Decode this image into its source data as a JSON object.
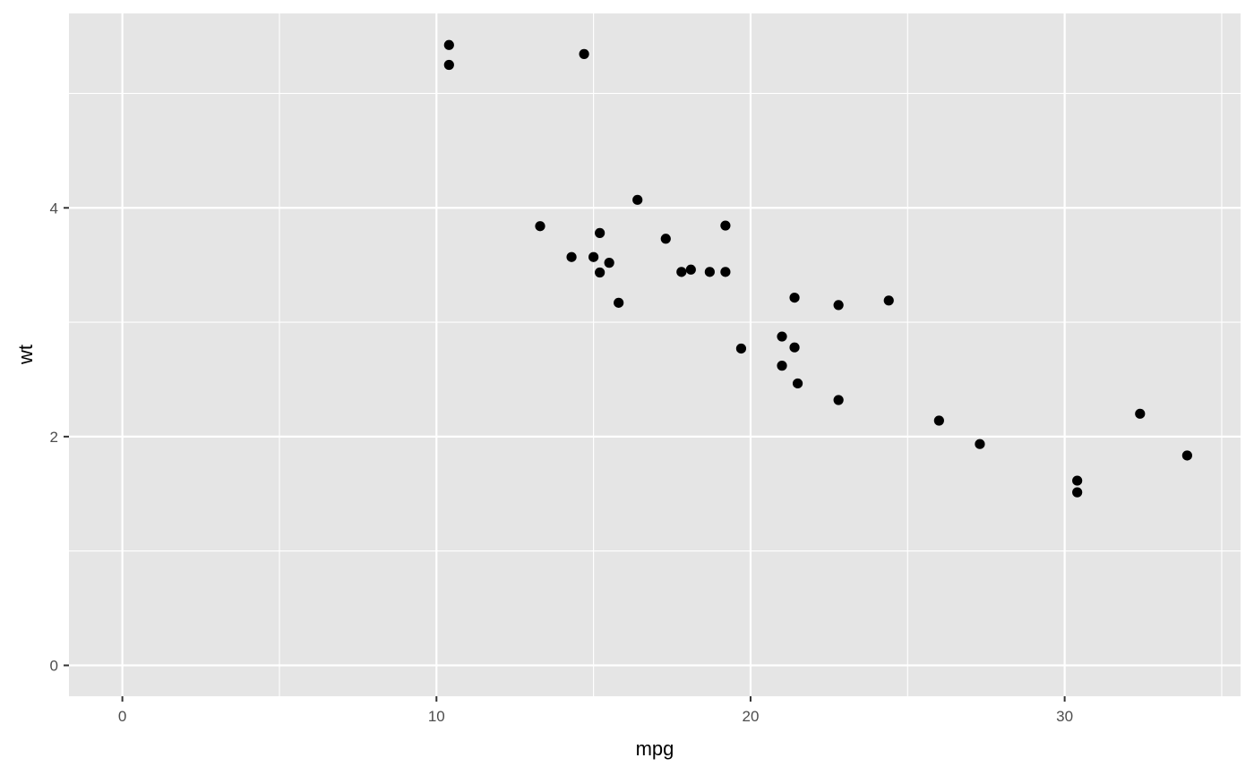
{
  "chart_data": {
    "type": "scatter",
    "title": "",
    "xlabel": "mpg",
    "ylabel": "wt",
    "xlim": [
      -1.7,
      35.6
    ],
    "ylim": [
      -0.27,
      5.7
    ],
    "x_ticks": [
      0,
      10,
      20,
      30
    ],
    "x_minor_ticks": [
      5,
      15,
      25,
      35
    ],
    "y_ticks": [
      0,
      2,
      4
    ],
    "y_minor_ticks": [
      1,
      3,
      5
    ],
    "grid": true,
    "legend": "none",
    "colors": {
      "panel": "#e5e5e5",
      "grid": "#ffffff",
      "point": "#000000",
      "tick_text": "#4d4d4d"
    },
    "points": [
      {
        "x": 21.0,
        "y": 2.62
      },
      {
        "x": 21.0,
        "y": 2.875
      },
      {
        "x": 22.8,
        "y": 2.32
      },
      {
        "x": 21.4,
        "y": 3.215
      },
      {
        "x": 18.7,
        "y": 3.44
      },
      {
        "x": 18.1,
        "y": 3.46
      },
      {
        "x": 14.3,
        "y": 3.57
      },
      {
        "x": 24.4,
        "y": 3.19
      },
      {
        "x": 22.8,
        "y": 3.15
      },
      {
        "x": 19.2,
        "y": 3.44
      },
      {
        "x": 17.8,
        "y": 3.44
      },
      {
        "x": 16.4,
        "y": 4.07
      },
      {
        "x": 17.3,
        "y": 3.73
      },
      {
        "x": 15.2,
        "y": 3.78
      },
      {
        "x": 10.4,
        "y": 5.25
      },
      {
        "x": 10.4,
        "y": 5.424
      },
      {
        "x": 14.7,
        "y": 5.345
      },
      {
        "x": 32.4,
        "y": 2.2
      },
      {
        "x": 30.4,
        "y": 1.615
      },
      {
        "x": 33.9,
        "y": 1.835
      },
      {
        "x": 21.5,
        "y": 2.465
      },
      {
        "x": 15.5,
        "y": 3.52
      },
      {
        "x": 15.2,
        "y": 3.435
      },
      {
        "x": 13.3,
        "y": 3.84
      },
      {
        "x": 19.2,
        "y": 3.845
      },
      {
        "x": 27.3,
        "y": 1.935
      },
      {
        "x": 26.0,
        "y": 2.14
      },
      {
        "x": 30.4,
        "y": 1.513
      },
      {
        "x": 15.8,
        "y": 3.17
      },
      {
        "x": 19.7,
        "y": 2.77
      },
      {
        "x": 15.0,
        "y": 3.57
      },
      {
        "x": 21.4,
        "y": 2.78
      }
    ]
  }
}
